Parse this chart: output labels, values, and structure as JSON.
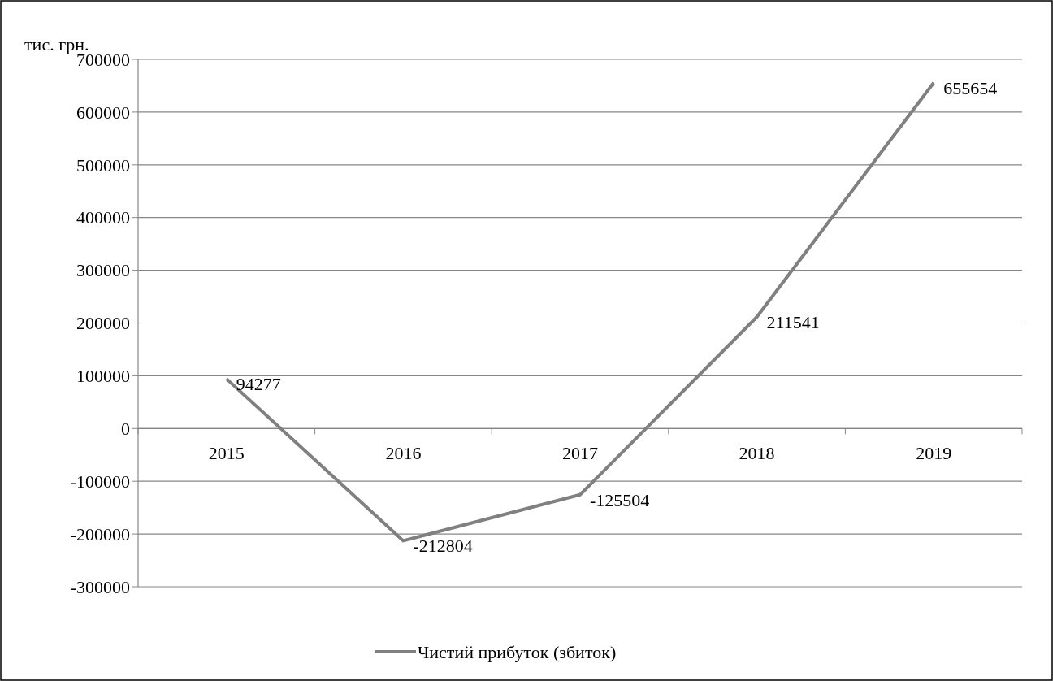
{
  "chart_data": {
    "type": "line",
    "ylabel": "тис. грн.",
    "categories": [
      "2015",
      "2016",
      "2017",
      "2018",
      "2019"
    ],
    "series": [
      {
        "name": "Чистий прибуток (збиток)",
        "color": "#808080",
        "values": [
          94277,
          -212804,
          -125504,
          211541,
          655654
        ]
      }
    ],
    "ylim": [
      -300000,
      700000
    ],
    "yticks": [
      -300000,
      -200000,
      -100000,
      0,
      100000,
      200000,
      300000,
      400000,
      500000,
      600000,
      700000
    ],
    "grid": "y",
    "legend": "bottom",
    "data_labels": true,
    "marker": "none",
    "line_style": "solid"
  }
}
